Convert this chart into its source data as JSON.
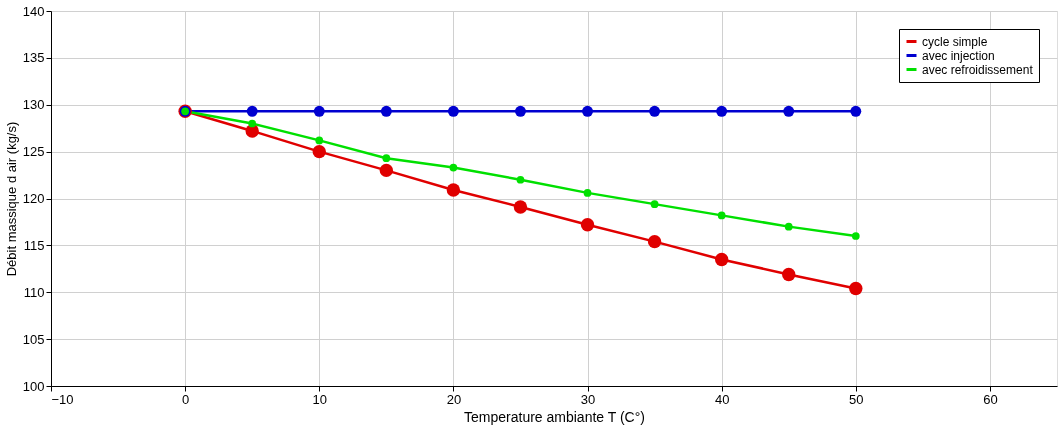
{
  "chart_data": {
    "type": "line",
    "xlabel": "Temperature ambiante        T (C°)",
    "ylabel": "Débit massique d air (kg/s)",
    "x": [
      0,
      5,
      10,
      15,
      20,
      25,
      30,
      35,
      40,
      45,
      50
    ],
    "series": [
      {
        "name": "cycle simple",
        "color": "#e00000",
        "values": [
          129.3,
          127.2,
          125.0,
          123.0,
          120.9,
          119.1,
          117.2,
          115.4,
          113.5,
          111.9,
          110.4
        ]
      },
      {
        "name": "avec injection",
        "color": "#0000d0",
        "values": [
          129.3,
          129.3,
          129.3,
          129.3,
          129.3,
          129.3,
          129.3,
          129.3,
          129.3,
          129.3,
          129.3
        ]
      },
      {
        "name": "avec refroidissement",
        "color": "#00e000",
        "values": [
          129.3,
          128.0,
          126.2,
          124.3,
          123.3,
          122.0,
          120.6,
          119.4,
          118.2,
          117.0,
          116.0
        ]
      }
    ],
    "xlim": [
      -10,
      65
    ],
    "xticks": [
      -10,
      0,
      10,
      20,
      30,
      40,
      50,
      60
    ],
    "ylim": [
      100,
      140
    ],
    "yticks": [
      100,
      105,
      110,
      115,
      120,
      125,
      130,
      135,
      140
    ],
    "grid": true,
    "legend": "top right",
    "marker": "circle",
    "line_style": "solid"
  }
}
